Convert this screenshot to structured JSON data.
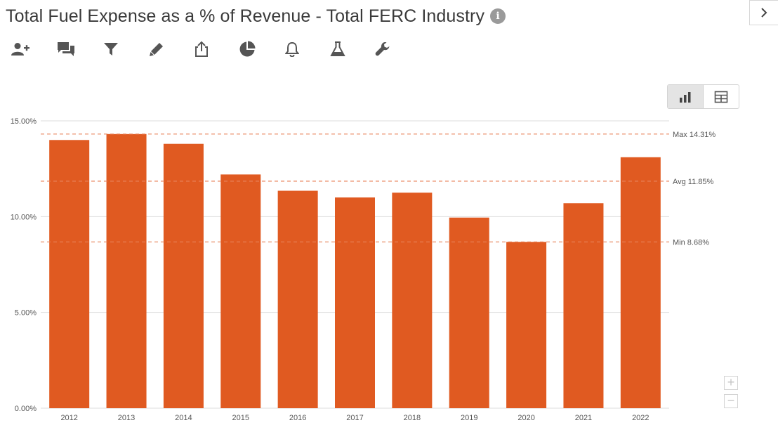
{
  "header": {
    "title": "Total Fuel Expense as a % of Revenue - Total FERC Industry",
    "info_icon": "info-icon",
    "expand_icon": "chevron-right-icon"
  },
  "toolbar": {
    "icons": [
      "add-user-icon",
      "comments-icon",
      "filter-icon",
      "pencil-icon",
      "share-icon",
      "pie-chart-icon",
      "bell-icon",
      "flask-icon",
      "wrench-icon"
    ]
  },
  "view_toggle": {
    "options": [
      "bar-chart-icon",
      "table-icon"
    ],
    "active": "bar-chart-icon"
  },
  "zoom": {
    "in": "+",
    "out": "−"
  },
  "chart_data": {
    "type": "bar",
    "title": "Total Fuel Expense as a % of Revenue - Total FERC Industry",
    "categories": [
      "2012",
      "2013",
      "2014",
      "2015",
      "2016",
      "2017",
      "2018",
      "2019",
      "2020",
      "2021",
      "2022"
    ],
    "values": [
      14.0,
      14.31,
      13.8,
      12.2,
      11.35,
      11.0,
      11.25,
      9.95,
      8.68,
      10.7,
      13.1
    ],
    "ylim": [
      0,
      15
    ],
    "yticks": [
      "0.00%",
      "5.00%",
      "10.00%",
      "15.00%"
    ],
    "ytick_values": [
      0,
      5,
      10,
      15
    ],
    "grid": true,
    "bar_color": "#e05a21",
    "reference_color": "#e8825a",
    "reference_lines": [
      {
        "label": "Max 14.31%",
        "value": 14.31
      },
      {
        "label": "Avg 11.85%",
        "value": 11.85
      },
      {
        "label": "Min 8.68%",
        "value": 8.68
      }
    ]
  }
}
